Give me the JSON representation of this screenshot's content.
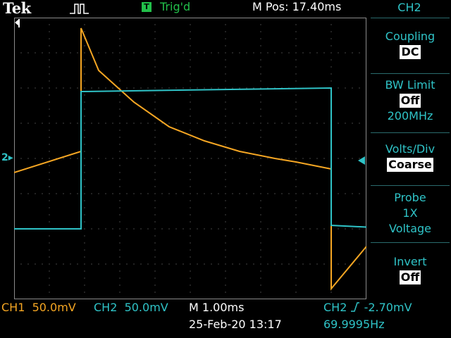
{
  "header": {
    "brand": "Tek",
    "trigger_badge": "T",
    "trigger_status": "Trig'd",
    "position": "M Pos: 17.40ms"
  },
  "side_menu": {
    "channel": "CH2",
    "coupling": {
      "label": "Coupling",
      "value": "DC"
    },
    "bw_limit": {
      "label": "BW Limit",
      "value": "Off",
      "extra": "200MHz"
    },
    "volts_div": {
      "label": "Volts/Div",
      "value": "Coarse"
    },
    "probe": {
      "label": "Probe",
      "line2": "1X",
      "line3": "Voltage"
    },
    "invert": {
      "label": "Invert",
      "value": "Off"
    }
  },
  "footer": {
    "ch1_label": "CH1",
    "ch1_scale": "50.0mV",
    "ch2_label": "CH2",
    "ch2_scale": "50.0mV",
    "timebase": "M 1.00ms",
    "datetime": "25-Feb-20 13:17",
    "trigger_source": "CH2",
    "trigger_slope": "rising-edge-icon",
    "trigger_level": "-2.70mV",
    "frequency": "69.9995Hz"
  },
  "markers": {
    "ch2_ground": "2"
  },
  "colors": {
    "ch1": "#f5a623",
    "ch2": "#2fc3c7",
    "grid": "#8a8a8a",
    "trigger": "#22c04a"
  },
  "chart_data": {
    "type": "line",
    "grid": true,
    "divisions": {
      "x": 10,
      "y": 8
    },
    "series": [
      {
        "name": "CH1",
        "x_div": [
          0,
          1.9,
          1.9,
          2.4,
          3.4,
          4.4,
          5.4,
          6.4,
          7.4,
          8.0,
          9.0,
          9.0,
          10.0
        ],
        "y_div": [
          -0.4,
          0.2,
          3.7,
          2.5,
          1.6,
          0.9,
          0.5,
          0.2,
          0.0,
          -0.1,
          -0.3,
          -3.7,
          -2.5
        ]
      },
      {
        "name": "CH2",
        "x_div": [
          0,
          1.9,
          1.9,
          9.0,
          9.0,
          10.0
        ],
        "y_div": [
          -2.0,
          -2.0,
          1.9,
          2.0,
          -1.9,
          -1.95
        ]
      }
    ]
  }
}
